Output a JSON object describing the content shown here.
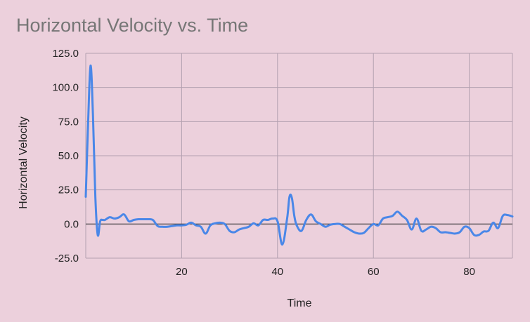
{
  "chart_data": {
    "type": "line",
    "title": "Horizontal Velocity vs. Time",
    "xlabel": "Time",
    "ylabel": "Horizontal Velocity",
    "xlim": [
      0,
      89
    ],
    "ylim": [
      -25,
      125
    ],
    "x_ticks": [
      20,
      40,
      60,
      80
    ],
    "x_tick_labels": [
      "20",
      "40",
      "60",
      "80"
    ],
    "y_ticks": [
      -25,
      0,
      25,
      50,
      75,
      100,
      125
    ],
    "y_tick_labels": [
      "-25.0",
      "0.0",
      "25.0",
      "50.0",
      "75.0",
      "100.0",
      "125.0"
    ],
    "grid": true,
    "legend": "none",
    "series": [
      {
        "color": "#4a87e8",
        "x": [
          0,
          0.5,
          1,
          1.5,
          2,
          2.5,
          3,
          3.5,
          4,
          5,
          6,
          7,
          8,
          9,
          10,
          11,
          12,
          13,
          14,
          15,
          16,
          17,
          18,
          19,
          20,
          21,
          22,
          23,
          24,
          25,
          26,
          27,
          28,
          29,
          30,
          31,
          32,
          33,
          34,
          35,
          36,
          37,
          38,
          39,
          40,
          41,
          42,
          42.5,
          43,
          43.5,
          44,
          45,
          46,
          47,
          48,
          49,
          50,
          51,
          52,
          53,
          54,
          55,
          56,
          57,
          58,
          59,
          60,
          61,
          62,
          63,
          64,
          65,
          66,
          67,
          68,
          69,
          70,
          71,
          72,
          73,
          74,
          75,
          76,
          77,
          78,
          79,
          80,
          81,
          82,
          83,
          84,
          85,
          86,
          87,
          88,
          89
        ],
        "y": [
          20,
          75,
          116,
          80,
          20,
          -8,
          2,
          3,
          3,
          5,
          4,
          5,
          7,
          2,
          3,
          3.5,
          3.5,
          3.5,
          3,
          -1.5,
          -2,
          -2,
          -1.5,
          -1,
          -1,
          -0.5,
          1,
          -1,
          -2,
          -7,
          -1,
          0.5,
          1,
          0,
          -5,
          -6,
          -4,
          -3,
          -2,
          0.5,
          -1,
          3,
          3,
          4,
          2,
          -15,
          4,
          20,
          19,
          6,
          -1,
          -5,
          3,
          7,
          2,
          0,
          -2,
          -0.5,
          0,
          0,
          -2,
          -4,
          -6,
          -7,
          -6.5,
          -3,
          0,
          -1,
          4,
          5,
          6,
          9,
          6,
          3,
          -4,
          4,
          -5,
          -4,
          -2,
          -3,
          -6,
          -6,
          -6.5,
          -7,
          -6,
          -2,
          -3,
          -8,
          -8,
          -5.5,
          -5,
          1,
          -3,
          6,
          6.5,
          5.5
        ]
      }
    ]
  }
}
